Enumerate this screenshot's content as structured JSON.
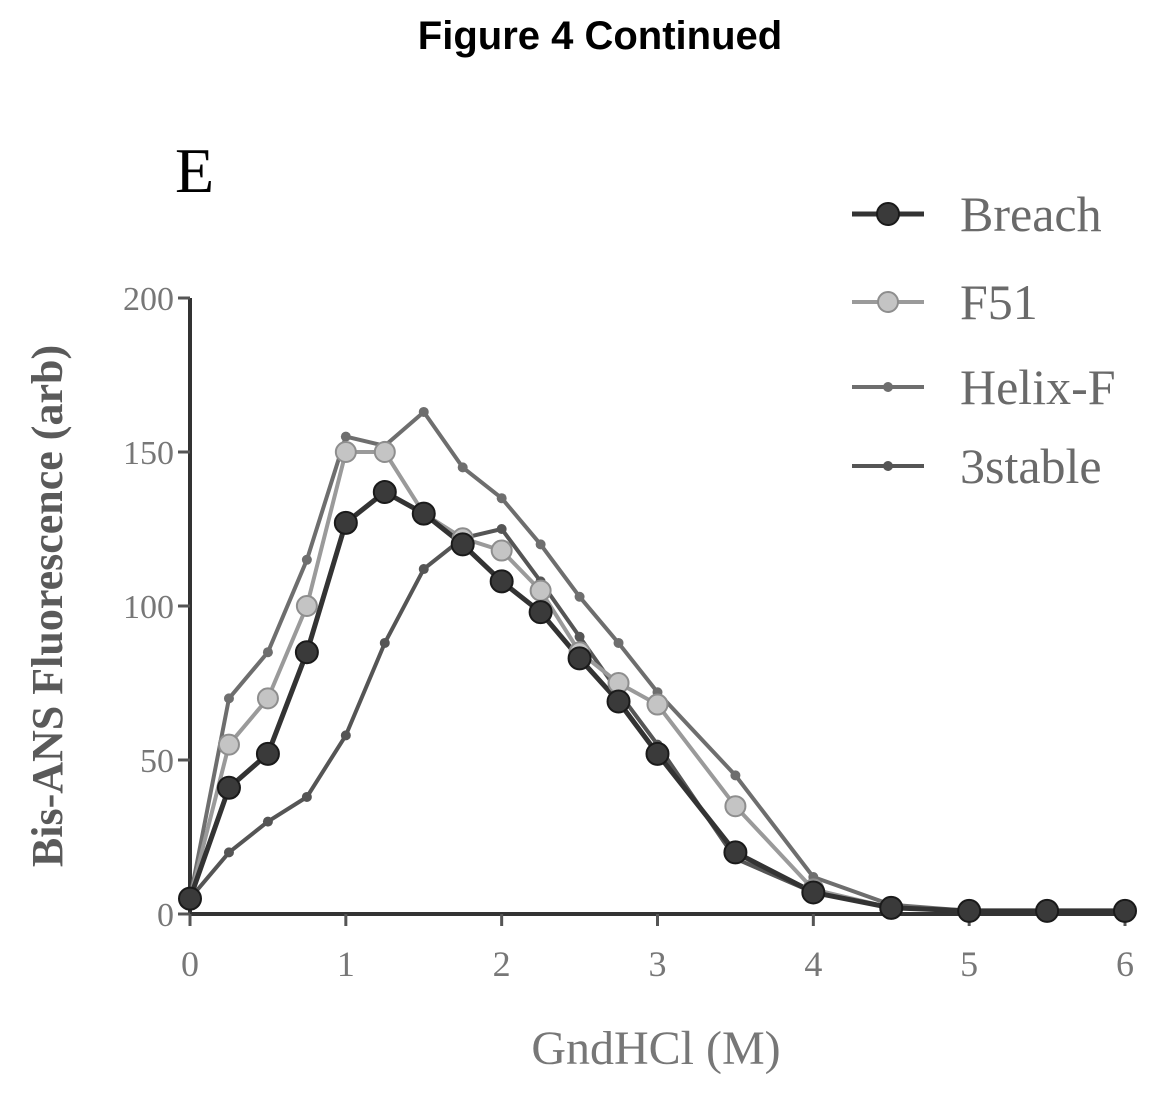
{
  "figure_title": "Figure 4 Continued",
  "panel_label": "E",
  "chart_data": {
    "type": "line",
    "title": "",
    "xlabel": "GndHCl (M)",
    "ylabel": "Bis-ANS Fluorescence (arb)",
    "xlim": [
      0,
      6
    ],
    "ylim": [
      0,
      200
    ],
    "x_ticks": [
      0,
      1,
      2,
      3,
      4,
      5,
      6
    ],
    "y_ticks": [
      0,
      50,
      100,
      150,
      200
    ],
    "grid": false,
    "legend_position": "top-right",
    "series": [
      {
        "name": "Breach",
        "marker": "large-filled-circle",
        "color": "#333333",
        "points": [
          [
            0,
            5
          ],
          [
            0.25,
            41
          ],
          [
            0.5,
            52
          ],
          [
            0.75,
            85
          ],
          [
            1.0,
            127
          ],
          [
            1.25,
            137
          ],
          [
            1.5,
            130
          ],
          [
            1.75,
            120
          ],
          [
            2.0,
            108
          ],
          [
            2.25,
            98
          ],
          [
            2.5,
            83
          ],
          [
            2.75,
            69
          ],
          [
            3.0,
            52
          ],
          [
            3.5,
            20
          ],
          [
            4.0,
            7
          ],
          [
            4.5,
            2
          ],
          [
            5.0,
            1
          ],
          [
            5.5,
            1
          ],
          [
            6.0,
            1
          ]
        ]
      },
      {
        "name": "F51",
        "marker": "light-circle",
        "color": "#9a9a9a",
        "points": [
          [
            0,
            5
          ],
          [
            0.25,
            55
          ],
          [
            0.5,
            70
          ],
          [
            0.75,
            100
          ],
          [
            1.0,
            150
          ],
          [
            1.25,
            150
          ],
          [
            1.5,
            130
          ],
          [
            1.75,
            122
          ],
          [
            2.0,
            118
          ],
          [
            2.25,
            105
          ],
          [
            2.5,
            85
          ],
          [
            2.75,
            75
          ],
          [
            3.0,
            68
          ],
          [
            3.5,
            35
          ],
          [
            4.0,
            8
          ],
          [
            4.5,
            2
          ],
          [
            5.0,
            1
          ],
          [
            5.5,
            1
          ],
          [
            6.0,
            1
          ]
        ]
      },
      {
        "name": "Helix-F",
        "marker": "small-dot",
        "color": "#6e6e6e",
        "points": [
          [
            0,
            5
          ],
          [
            0.25,
            70
          ],
          [
            0.5,
            85
          ],
          [
            0.75,
            115
          ],
          [
            1.0,
            155
          ],
          [
            1.25,
            152
          ],
          [
            1.5,
            163
          ],
          [
            1.75,
            145
          ],
          [
            2.0,
            135
          ],
          [
            2.25,
            120
          ],
          [
            2.5,
            103
          ],
          [
            2.75,
            88
          ],
          [
            3.0,
            72
          ],
          [
            3.5,
            45
          ],
          [
            4.0,
            12
          ],
          [
            4.5,
            3
          ],
          [
            5.0,
            1
          ],
          [
            5.5,
            1
          ],
          [
            6.0,
            1
          ]
        ]
      },
      {
        "name": "3stable",
        "marker": "small-dot",
        "color": "#555555",
        "points": [
          [
            0,
            5
          ],
          [
            0.25,
            20
          ],
          [
            0.5,
            30
          ],
          [
            0.75,
            38
          ],
          [
            1.0,
            58
          ],
          [
            1.25,
            88
          ],
          [
            1.5,
            112
          ],
          [
            1.75,
            122
          ],
          [
            2.0,
            125
          ],
          [
            2.25,
            108
          ],
          [
            2.5,
            90
          ],
          [
            2.75,
            72
          ],
          [
            3.0,
            55
          ],
          [
            3.5,
            18
          ],
          [
            4.0,
            7
          ],
          [
            4.5,
            2
          ],
          [
            5.0,
            1
          ],
          [
            5.5,
            1
          ],
          [
            6.0,
            1
          ]
        ]
      }
    ]
  }
}
